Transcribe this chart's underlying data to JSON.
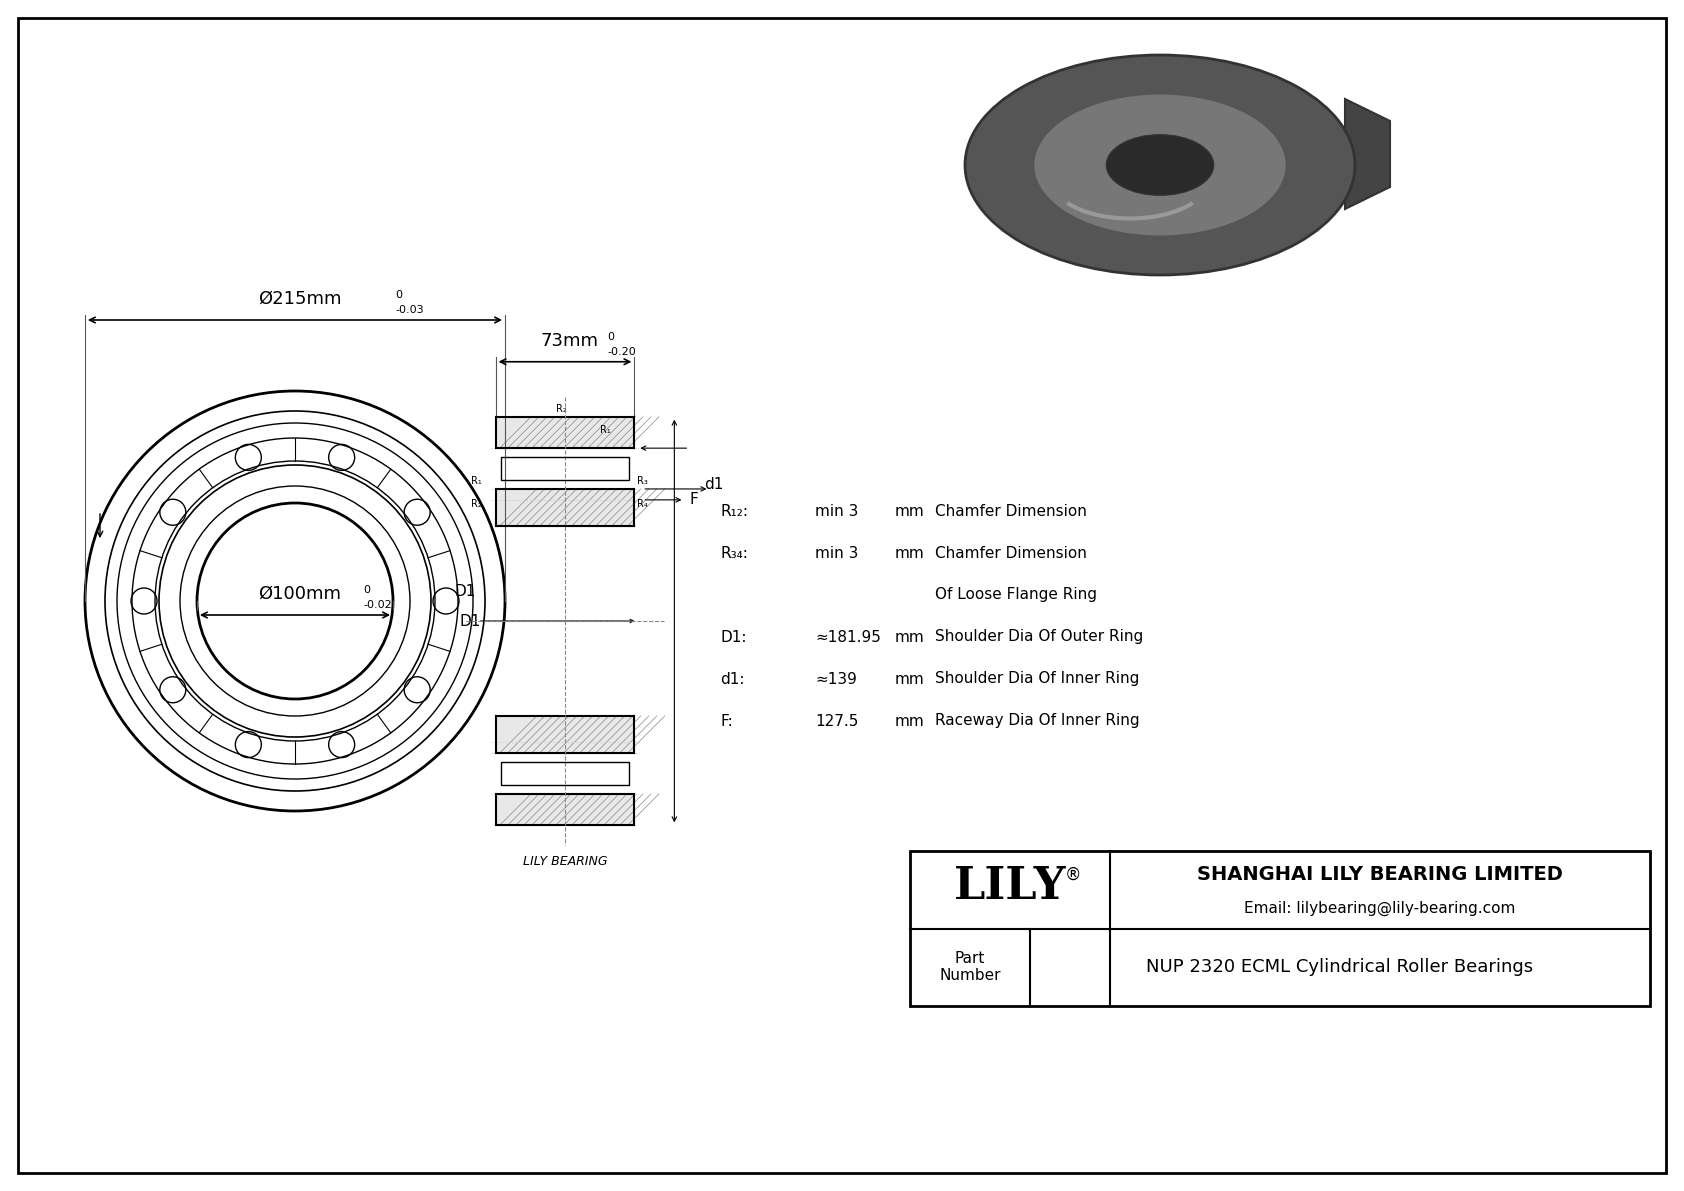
{
  "bg_color": "#ffffff",
  "border_color": "#000000",
  "line_color": "#000000",
  "dim_color": "#555555",
  "outer_diameter_label": "Ø215mm",
  "outer_tolerance_upper": "0",
  "outer_tolerance_lower": "-0.03",
  "inner_diameter_label": "Ø100mm",
  "inner_tolerance_upper": "0",
  "inner_tolerance_lower": "-0.02",
  "width_label": "73mm",
  "width_tolerance_upper": "0",
  "width_tolerance_lower": "-0.20",
  "params": [
    {
      "name": "R₁₂:",
      "value": "min 3",
      "unit": "mm",
      "desc": "Chamfer Dimension"
    },
    {
      "name": "R₃₄:",
      "value": "min 3",
      "unit": "mm",
      "desc": "Chamfer Dimension"
    },
    {
      "name": "",
      "value": "",
      "unit": "",
      "desc": "Of Loose Flange Ring"
    },
    {
      "name": "D1:",
      "value": "≈181.95",
      "unit": "mm",
      "desc": "Shoulder Dia Of Outer Ring"
    },
    {
      "name": "d1:",
      "value": "≈139",
      "unit": "mm",
      "desc": "Shoulder Dia Of Inner Ring"
    },
    {
      "name": "F:",
      "value": "127.5",
      "unit": "mm",
      "desc": "Raceway Dia Of Inner Ring"
    }
  ],
  "company_name": "SHANGHAI LILY BEARING LIMITED",
  "company_email": "Email: lilybearing@lily-bearing.com",
  "lily_logo": "LILY",
  "part_label": "Part\nNumber",
  "part_number": "NUP 2320 ECML Cylindrical Roller Bearings",
  "watermark": "LILY BEARING"
}
